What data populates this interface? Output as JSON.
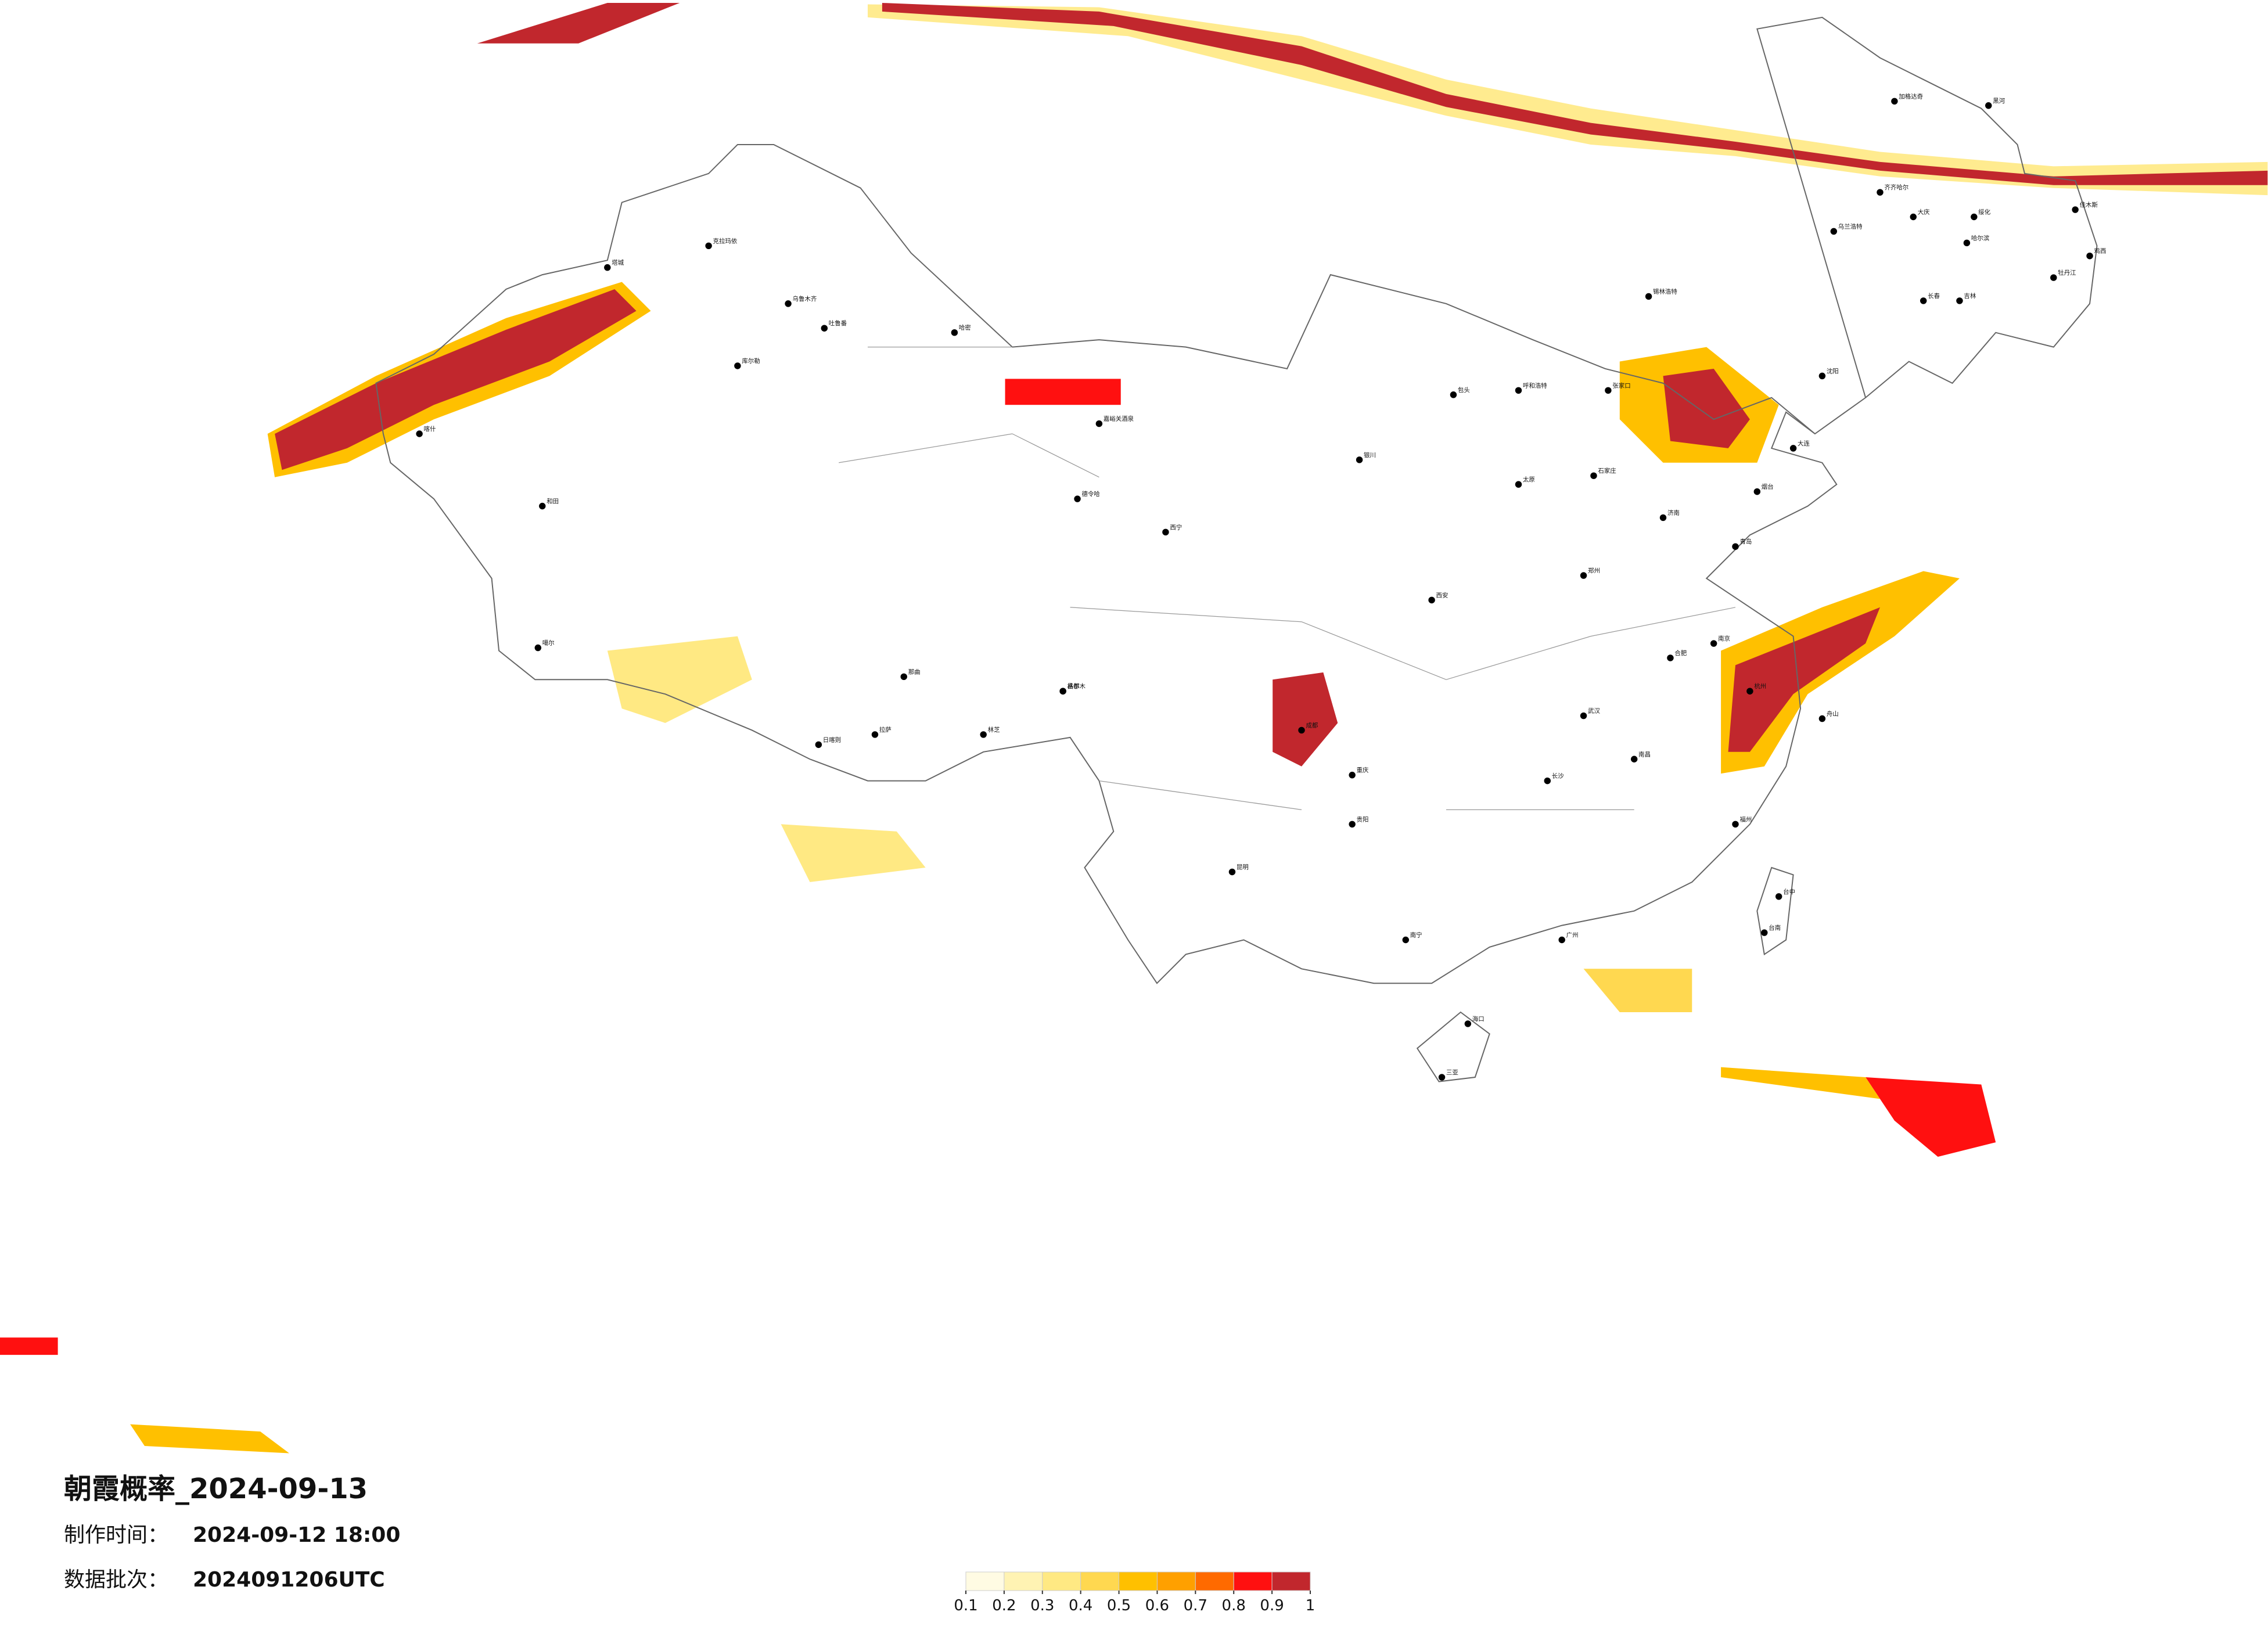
{
  "title": "朝霞概率_2024-09-13",
  "made_label": "制作时间：",
  "made_time": "2024-09-12 18:00",
  "batch_label": "数据批次：",
  "batch": "2024091206UTC",
  "legend": {
    "ticks": [
      0.1,
      0.2,
      0.3,
      0.4,
      0.5,
      0.6,
      0.7,
      0.8,
      0.9,
      1
    ],
    "colors": [
      "#fffbe3",
      "#fff3b3",
      "#ffe983",
      "#ffd850",
      "#ffc000",
      "#ffa000",
      "#ff6a00",
      "#ff1010",
      "#c1272d"
    ]
  },
  "cities": [
    "加格达奇",
    "黑河",
    "齐齐哈尔",
    "大庆",
    "哈尔滨",
    "绥化",
    "佳木斯",
    "鸡西",
    "牡丹江",
    "长春",
    "吉林",
    "乌兰浩特",
    "锡林浩特",
    "呼和浩特",
    "包头",
    "张家口",
    "石家庄",
    "太原",
    "银川",
    "西宁",
    "嘉峪关酒泉",
    "德令哈",
    "格尔木",
    "乌鲁木齐",
    "吐鲁番",
    "哈密",
    "库尔勒",
    "克拉玛依",
    "塔城",
    "和田",
    "喀什",
    "噶尔",
    "拉萨",
    "日喀则",
    "林芝",
    "那曲",
    "昌都",
    "成都",
    "重庆",
    "贵阳",
    "昆明",
    "南宁",
    "海口",
    "三亚",
    "广州",
    "长沙",
    "武汉",
    "郑州",
    "西安",
    "济南",
    "南京",
    "杭州",
    "福州",
    "台中",
    "台南",
    "沈阳",
    "大连",
    "烟台",
    "青岛",
    "南昌",
    "合肥",
    "舟山"
  ]
}
